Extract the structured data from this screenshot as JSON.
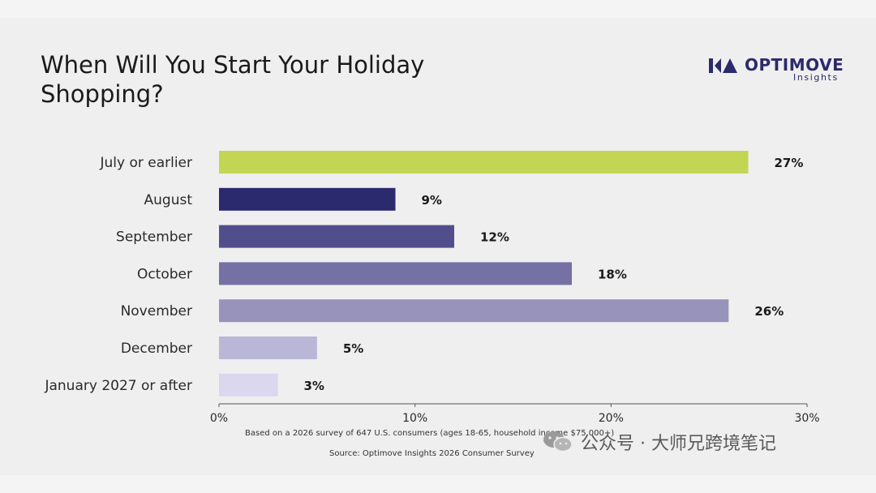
{
  "title": "When Will You Start Your Holiday Shopping?",
  "logo": {
    "name": "OPTIMOVE",
    "sub": "Insights",
    "color": "#2b2a6b"
  },
  "footnote": "Based on a 2026 survey of 647 U.S. consumers (ages 18-65, household income $75,000+)",
  "source": "Source: Optimove Insights 2026 Consumer Survey",
  "watermark": "公众号 · 大师兄跨境笔记",
  "chart_data": {
    "type": "bar",
    "orientation": "horizontal",
    "categories": [
      "July or earlier",
      "August",
      "September",
      "October",
      "November",
      "December",
      "January 2027 or after"
    ],
    "values": [
      27,
      9,
      12,
      18,
      26,
      5,
      3
    ],
    "value_labels": [
      "27%",
      "9%",
      "12%",
      "18%",
      "26%",
      "5%",
      "3%"
    ],
    "colors": [
      "#c2d653",
      "#2c2a6e",
      "#524e8b",
      "#7671a4",
      "#9893ba",
      "#bab6d7",
      "#dad7ee"
    ],
    "xlim": [
      0,
      30
    ],
    "xticks": [
      0,
      10,
      20,
      30
    ],
    "xtick_labels": [
      "0%",
      "10%",
      "20%",
      "30%"
    ],
    "grid": false,
    "legend": "none"
  }
}
